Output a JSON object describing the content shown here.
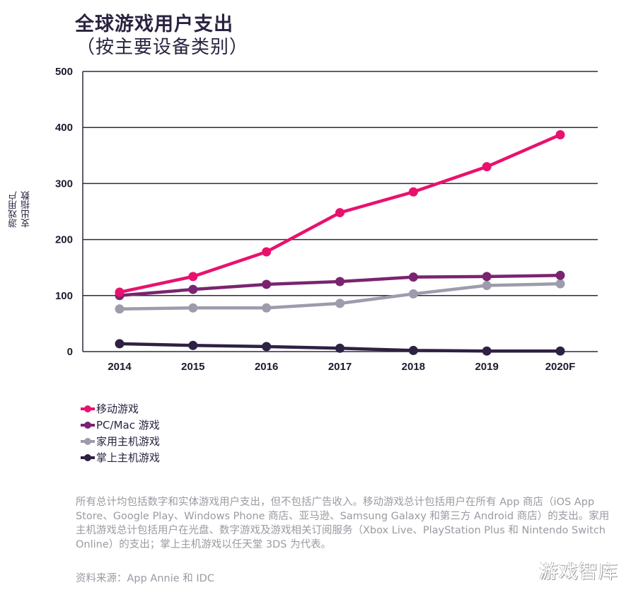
{
  "header": {
    "title": "全球游戏用户支出",
    "subtitle": "（按主要设备类别）"
  },
  "chart_data": {
    "type": "line",
    "title": "全球游戏用户支出（按主要设备类别）",
    "xlabel": "",
    "ylabel": "游戏用户支出指数",
    "ylabel_lines": [
      "游戏用户",
      "支出指数"
    ],
    "categories": [
      "2014",
      "2015",
      "2016",
      "2017",
      "2018",
      "2019",
      "2020F"
    ],
    "ylim": [
      0,
      500
    ],
    "yticks": [
      0,
      100,
      200,
      300,
      400,
      500
    ],
    "grid": true,
    "legend_position": "bottom-left",
    "series": [
      {
        "name": "移动游戏",
        "color": "#e8126e",
        "values": [
          106,
          134,
          178,
          248,
          285,
          330,
          387
        ]
      },
      {
        "name": "PC/Mac 游戏",
        "color": "#7a2470",
        "values": [
          100,
          111,
          120,
          125,
          133,
          134,
          136
        ]
      },
      {
        "name": "家用主机游戏",
        "color": "#9c9cac",
        "values": [
          76,
          78,
          78,
          86,
          103,
          118,
          121
        ]
      },
      {
        "name": "掌上主机游戏",
        "color": "#2e2142",
        "values": [
          14,
          11,
          9,
          6,
          2,
          1,
          1
        ]
      }
    ]
  },
  "footer": {
    "note": "所有总计均包括数字和实体游戏用户支出，但不包括广告收入。移动游戏总计包括用户在所有 App 商店（iOS App Store、Google Play、Windows Phone 商店、亚马逊、Samsung Galaxy 和第三方 Android 商店）的支出。家用主机游戏总计包括用户在光盘、数字游戏及游戏相关订阅服务（Xbox Live、PlayStation Plus 和 Nintendo Switch Online）的支出；掌上主机游戏以任天堂 3DS 为代表。",
    "source": "资料来源：App Annie 和 IDC",
    "watermark": "游戏智库"
  }
}
